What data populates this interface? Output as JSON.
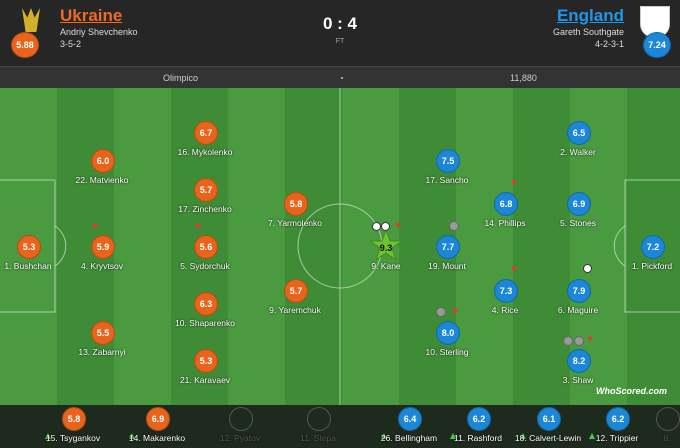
{
  "header": {
    "home": {
      "name": "Ukraine",
      "manager": "Andriy Shevchenko",
      "formation": "3-5-2",
      "rating": "5.88"
    },
    "score": "0 : 4",
    "status": "FT",
    "away": {
      "name": "England",
      "manager": "Gareth Southgate",
      "formation": "4-2-3-1",
      "rating": "7.24"
    }
  },
  "info": {
    "venue": "Olimpico",
    "attendance": "11,880"
  },
  "home_players": [
    {
      "name": "1. Bushchan",
      "rating": "5.3"
    },
    {
      "name": "22. Matvienko",
      "rating": "6.0"
    },
    {
      "name": "4. Kryvtsov",
      "rating": "5.9"
    },
    {
      "name": "13. Zabarnyi",
      "rating": "5.5"
    },
    {
      "name": "16. Mykolenko",
      "rating": "6.7"
    },
    {
      "name": "17. Zinchenko",
      "rating": "5.7"
    },
    {
      "name": "5. Sydorchuk",
      "rating": "5.6"
    },
    {
      "name": "10. Shaparenko",
      "rating": "6.3"
    },
    {
      "name": "21. Karavaev",
      "rating": "5.3"
    },
    {
      "name": "7. Yarmolenko",
      "rating": "5.8"
    },
    {
      "name": "9. Yaremchuk",
      "rating": "5.7"
    }
  ],
  "away_players": [
    {
      "name": "1. Pickford",
      "rating": "7.2"
    },
    {
      "name": "2. Walker",
      "rating": "6.5"
    },
    {
      "name": "5. Stones",
      "rating": "6.9"
    },
    {
      "name": "6. Maguire",
      "rating": "7.9"
    },
    {
      "name": "3. Shaw",
      "rating": "8.2"
    },
    {
      "name": "14. Phillips",
      "rating": "6.8"
    },
    {
      "name": "4. Rice",
      "rating": "7.3"
    },
    {
      "name": "17. Sancho",
      "rating": "7.5"
    },
    {
      "name": "19. Mount",
      "rating": "7.7"
    },
    {
      "name": "10. Sterling",
      "rating": "8.0"
    },
    {
      "name": "9. Kane",
      "rating": "9.3"
    }
  ],
  "home_subs": [
    {
      "name": "15. Tsygankov",
      "rating": "5.8"
    },
    {
      "name": "14. Makarenko",
      "rating": "6.9"
    },
    {
      "name": "12. Pyatov"
    },
    {
      "name": "11. Stepa"
    }
  ],
  "away_subs": [
    {
      "name": "26. Bellingham",
      "rating": "6.4"
    },
    {
      "name": "11. Rashford",
      "rating": "6.2"
    },
    {
      "name": "18. Calvert-Lewin",
      "rating": "6.1"
    },
    {
      "name": "12. Trippier",
      "rating": "6.2"
    },
    {
      "name": "8."
    }
  ],
  "logo": "WhoScored.com"
}
